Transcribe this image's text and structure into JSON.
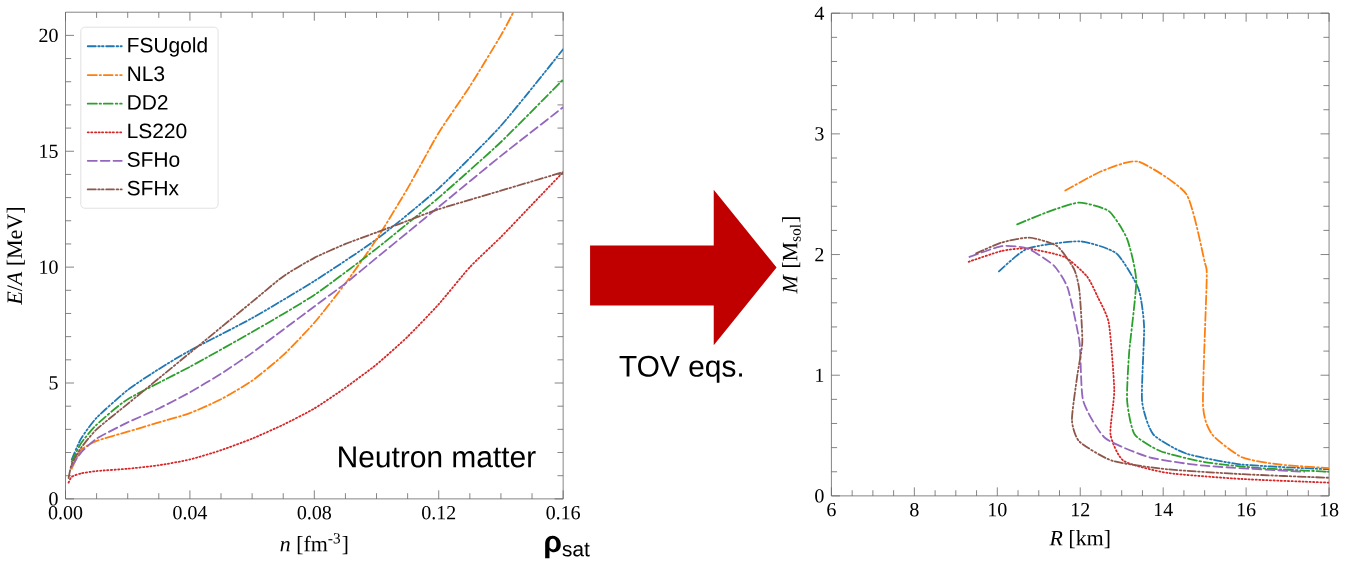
{
  "chart_data": [
    {
      "type": "line",
      "xlabel": "*n*  [fm$^{-3}$]",
      "ylabel": "*E*/*A*  [MeV]",
      "xlim": [
        0,
        0.16
      ],
      "ylim": [
        0,
        21
      ],
      "xticks": [
        {
          "value": 0,
          "label": "0.00"
        },
        0.04,
        0.08,
        0.12,
        0.16
      ],
      "yticks": [
        0,
        5,
        10,
        15,
        20
      ],
      "legend": "top left",
      "grid": false,
      "marker": "none",
      "annotations": [
        "Neutron matter",
        "**ρ**$_{sat}$",
        "TOV eqs."
      ],
      "series": [
        {
          "name": "FSUgold",
          "color": "#1f77b4",
          "line_style": "dashdotdot",
          "x": [
            0.002,
            0.005,
            0.01,
            0.02,
            0.03,
            0.04,
            0.06,
            0.08,
            0.1,
            0.12,
            0.14,
            0.16
          ],
          "values": [
            1.7,
            2.6,
            3.5,
            4.7,
            5.6,
            6.4,
            7.8,
            9.4,
            11.2,
            13.4,
            16.1,
            19.4
          ]
        },
        {
          "name": "NL3",
          "color": "#ff7f0e",
          "line_style": "dashdot",
          "x": [
            0.002,
            0.005,
            0.01,
            0.02,
            0.03,
            0.04,
            0.05,
            0.06,
            0.07,
            0.08,
            0.09,
            0.1,
            0.11,
            0.12,
            0.13,
            0.14,
            0.144
          ],
          "values": [
            1.3,
            2.1,
            2.5,
            2.9,
            3.3,
            3.7,
            4.3,
            5.1,
            6.2,
            7.6,
            9.3,
            11.2,
            13.4,
            15.8,
            17.8,
            20.0,
            21
          ]
        },
        {
          "name": "DD2",
          "color": "#2ca02c",
          "line_style": "dashdot",
          "x": [
            0.002,
            0.005,
            0.01,
            0.02,
            0.04,
            0.06,
            0.08,
            0.1,
            0.12,
            0.14,
            0.16
          ],
          "values": [
            1.6,
            2.4,
            3.2,
            4.3,
            5.7,
            7.2,
            8.8,
            10.8,
            13.0,
            15.4,
            18.1
          ]
        },
        {
          "name": "LS220",
          "color": "#d62728",
          "line_style": "dotted",
          "x": [
            0.001,
            0.002,
            0.005,
            0.01,
            0.02,
            0.03,
            0.04,
            0.05,
            0.06,
            0.07,
            0.08,
            0.09,
            0.1,
            0.11,
            0.12,
            0.13,
            0.14,
            0.15,
            0.16
          ],
          "values": [
            0.7,
            0.95,
            1.1,
            1.2,
            1.3,
            1.45,
            1.7,
            2.1,
            2.6,
            3.2,
            3.9,
            4.8,
            5.8,
            7.0,
            8.4,
            10.0,
            11.3,
            12.7,
            14.1
          ]
        },
        {
          "name": "SFHo",
          "color": "#9467bd",
          "line_style": "dashed",
          "x": [
            0.002,
            0.005,
            0.01,
            0.02,
            0.03,
            0.04,
            0.05,
            0.06,
            0.07,
            0.08,
            0.09,
            0.1,
            0.11,
            0.12,
            0.14,
            0.16
          ],
          "values": [
            1.4,
            2.0,
            2.6,
            3.3,
            3.9,
            4.6,
            5.4,
            6.3,
            7.3,
            8.3,
            9.3,
            10.4,
            11.5,
            12.6,
            14.8,
            16.9
          ]
        },
        {
          "name": "SFHx",
          "color": "#8c564b",
          "line_style": "dashdotdot",
          "x": [
            0.001,
            0.002,
            0.005,
            0.01,
            0.02,
            0.03,
            0.04,
            0.05,
            0.06,
            0.07,
            0.08,
            0.09,
            0.1,
            0.11,
            0.12,
            0.14,
            0.16
          ],
          "values": [
            0.9,
            1.5,
            2.2,
            3.0,
            4.1,
            5.2,
            6.3,
            7.4,
            8.5,
            9.6,
            10.4,
            11.0,
            11.5,
            12.0,
            12.5,
            13.3,
            14.1
          ]
        }
      ]
    },
    {
      "type": "line",
      "xlabel": "*R* [km]",
      "ylabel": "*M*  [M$_{sol}$]",
      "xlim": [
        6,
        18
      ],
      "ylim": [
        0,
        4
      ],
      "xticks": [
        6,
        8,
        10,
        12,
        14,
        16,
        18
      ],
      "yticks": [
        0,
        1,
        2,
        3,
        4
      ],
      "grid": false,
      "marker": "none",
      "series": [
        {
          "color": "#1f77b4",
          "line_style": "dashdotdot",
          "x": [
            10.04,
            10.73,
            11.98,
            12.87,
            13.4,
            13.54,
            13.49,
            13.76,
            14.56,
            15.9,
            18
          ],
          "values": [
            1.86,
            2.05,
            2.11,
            2.01,
            1.72,
            1.4,
            0.79,
            0.51,
            0.35,
            0.26,
            0.22
          ]
        },
        {
          "color": "#ff7f0e",
          "line_style": "dashdot",
          "x": [
            11.64,
            12.51,
            13.4,
            14.56,
            15.0,
            15.05,
            14.96,
            15.18,
            15.9,
            16.8,
            18
          ],
          "values": [
            2.53,
            2.69,
            2.77,
            2.5,
            1.94,
            1.8,
            0.76,
            0.51,
            0.32,
            0.26,
            0.23
          ]
        },
        {
          "color": "#2ca02c",
          "line_style": "dashdot",
          "x": [
            10.48,
            11.27,
            11.98,
            12.69,
            13.13,
            13.35,
            13.18,
            13.13,
            13.31,
            13.94,
            15.0,
            16.34,
            18
          ],
          "values": [
            2.25,
            2.36,
            2.43,
            2.36,
            2.13,
            1.78,
            1.19,
            0.79,
            0.51,
            0.37,
            0.28,
            0.23,
            0.2
          ]
        },
        {
          "color": "#d62728",
          "line_style": "dotted",
          "x": [
            9.31,
            10.11,
            10.73,
            11.62,
            12.16,
            12.42,
            12.69,
            12.82,
            12.73,
            13.05,
            14.11,
            15.9,
            18
          ],
          "values": [
            1.94,
            2.03,
            2.05,
            1.98,
            1.82,
            1.65,
            1.43,
            0.88,
            0.51,
            0.29,
            0.19,
            0.14,
            0.11
          ]
        },
        {
          "color": "#9467bd",
          "line_style": "dashed",
          "x": [
            9.33,
            10.11,
            10.73,
            11.36,
            11.7,
            11.98,
            12.07,
            12.6,
            13.67,
            15.0,
            17.4
          ],
          "values": [
            1.98,
            2.07,
            2.05,
            1.91,
            1.72,
            1.28,
            0.79,
            0.48,
            0.32,
            0.25,
            0.2
          ]
        },
        {
          "color": "#8c564b",
          "line_style": "dashdotdot",
          "x": [
            9.49,
            10.11,
            10.78,
            11.44,
            11.85,
            11.98,
            12.05,
            11.93,
            11.8,
            11.98,
            12.78,
            14.11,
            15.9,
            18
          ],
          "values": [
            2.01,
            2.1,
            2.14,
            2.07,
            1.88,
            1.7,
            1.28,
            1.0,
            0.63,
            0.45,
            0.29,
            0.22,
            0.18,
            0.15
          ]
        }
      ]
    }
  ]
}
